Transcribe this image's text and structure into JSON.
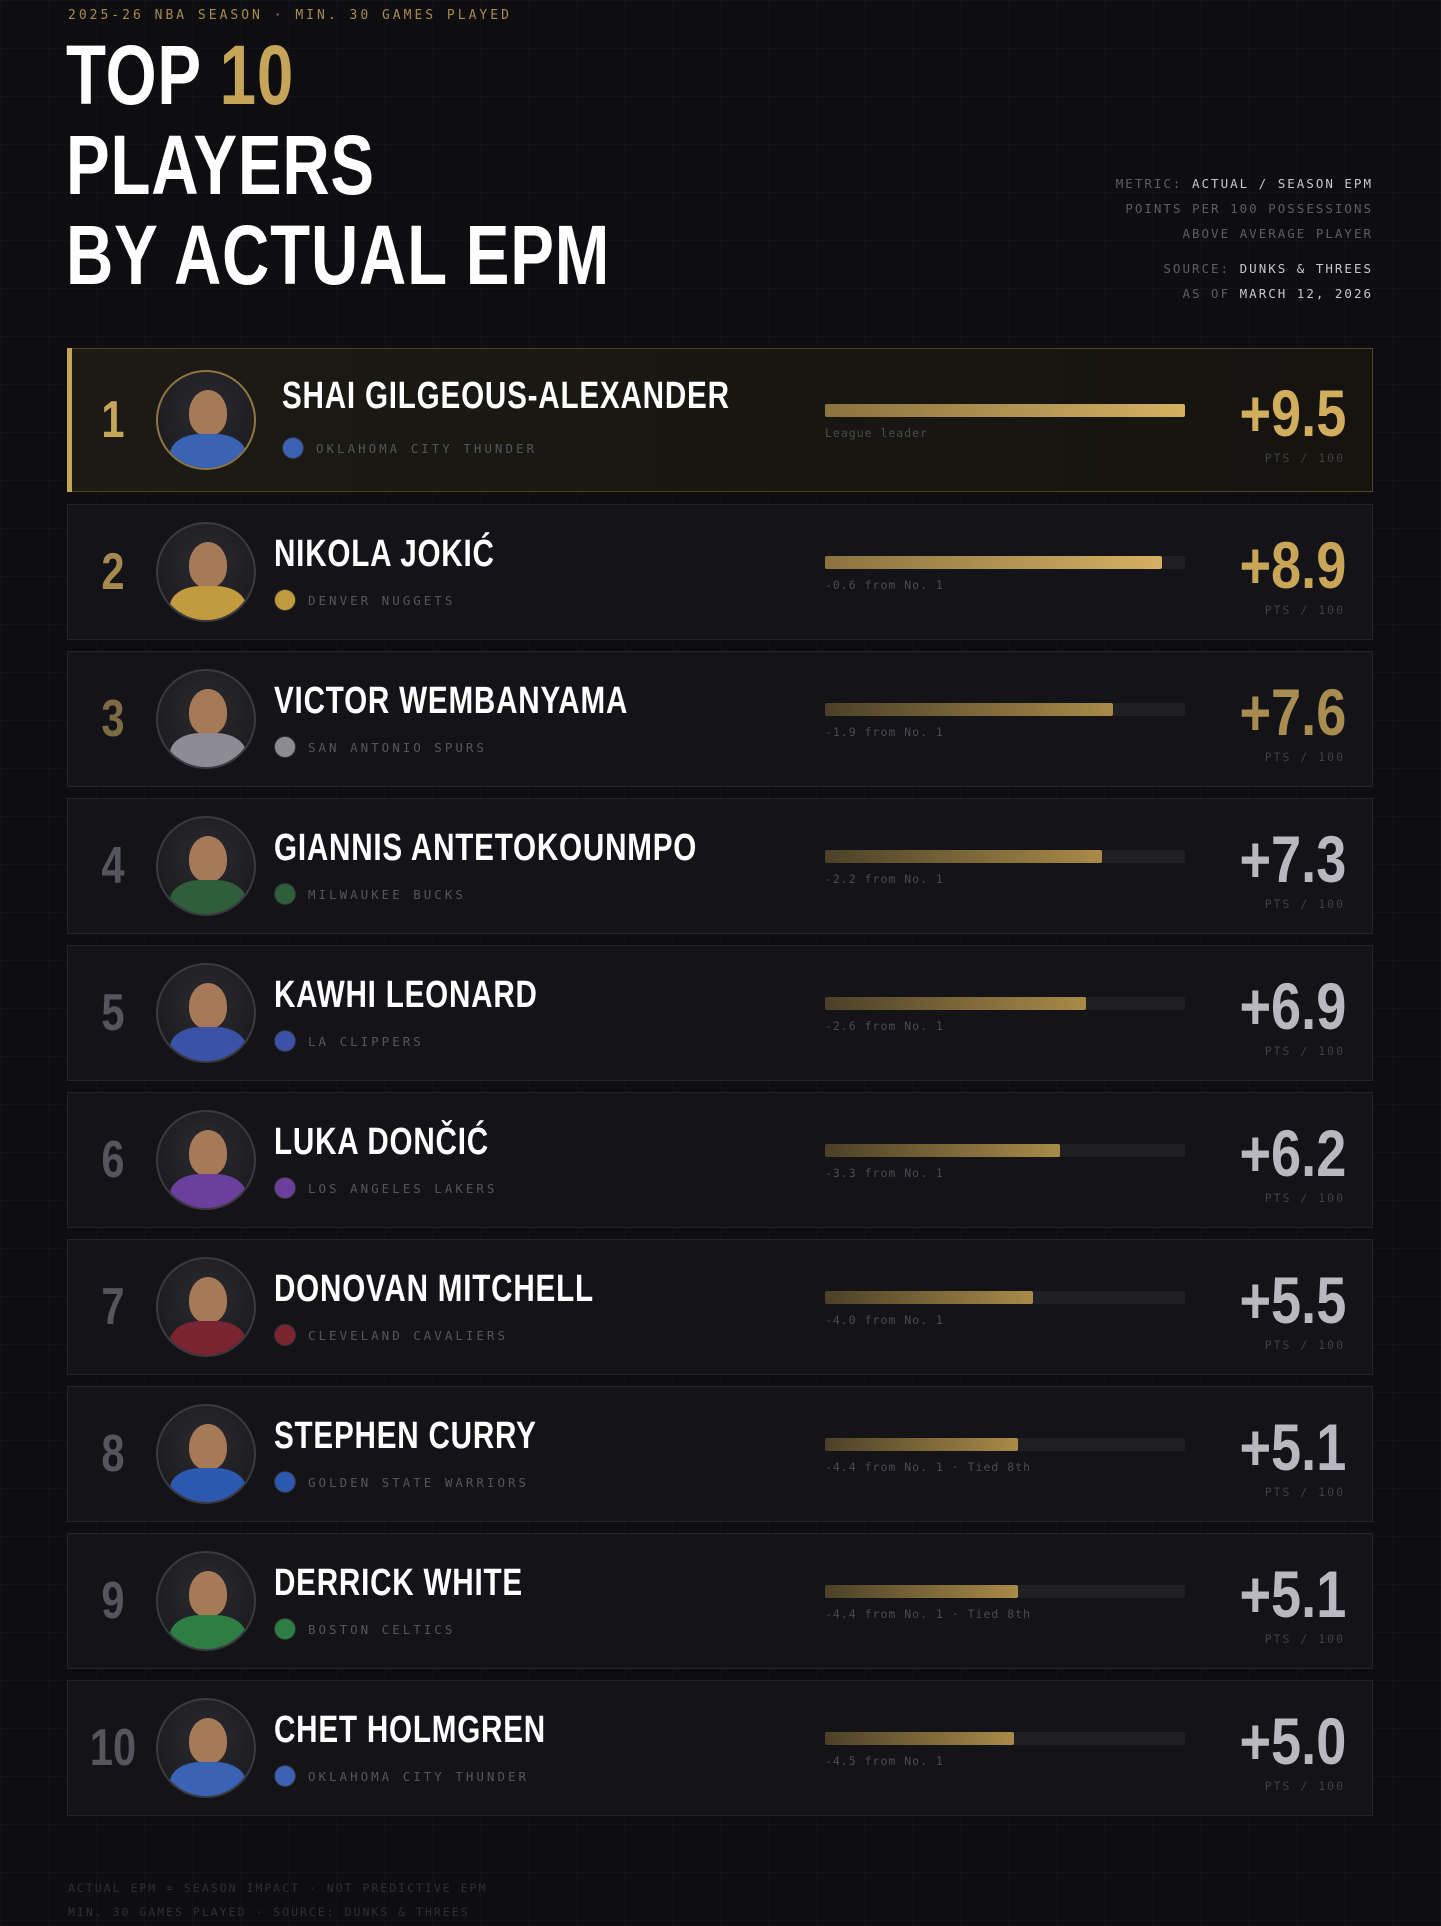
{
  "header": {
    "kicker": "2025-26 NBA SEASON · MIN. 30 GAMES PLAYED",
    "title_line1_a": "TOP ",
    "title_line1_b": "10",
    "title_line2": "PLAYERS",
    "title_line3": "BY ACTUAL EPM",
    "meta": {
      "metric_label": "METRIC:",
      "metric_value": "ACTUAL / SEASON EPM",
      "desc_line1": "POINTS PER 100 POSSESSIONS",
      "desc_line2": "ABOVE AVERAGE PLAYER",
      "source_label": "SOURCE:",
      "source_value": "DUNKS & THREES",
      "asof_label": "AS OF",
      "asof_value": "MARCH 12, 2026"
    }
  },
  "players": [
    {
      "rank": "1",
      "name": "SHAI GILGEOUS-ALEXANDER",
      "team": "OKLAHOMA CITY THUNDER",
      "value": "+9.5",
      "epm": 9.5,
      "note": "League leader",
      "unit": "PTS / 100",
      "team_color": "#3a63b5",
      "rank_color": "#c6a45a",
      "value_color": "#d1ad5e"
    },
    {
      "rank": "2",
      "name": "NIKOLA JOKIĆ",
      "team": "DENVER NUGGETS",
      "value": "+8.9",
      "epm": 8.9,
      "note": "-0.6 from No. 1",
      "unit": "PTS / 100",
      "team_color": "#c29b3f",
      "rank_color": "#a6894f",
      "value_color": "#c9a557"
    },
    {
      "rank": "3",
      "name": "VICTOR WEMBANYAMA",
      "team": "SAN ANTONIO SPURS",
      "value": "+7.6",
      "epm": 7.6,
      "note": "-1.9 from No. 1",
      "unit": "PTS / 100",
      "team_color": "#8c8c92",
      "rank_color": "#7d6b45",
      "value_color": "#a88c50"
    },
    {
      "rank": "4",
      "name": "GIANNIS ANTETOKOUNMPO",
      "team": "MILWAUKEE BUCKS",
      "value": "+7.3",
      "epm": 7.3,
      "note": "-2.2 from No. 1",
      "unit": "PTS / 100",
      "team_color": "#2f5e3a",
      "rank_color": "#55555c",
      "value_color": "#b8b8be"
    },
    {
      "rank": "5",
      "name": "KAWHI LEONARD",
      "team": "LA CLIPPERS",
      "value": "+6.9",
      "epm": 6.9,
      "note": "-2.6 from No. 1",
      "unit": "PTS / 100",
      "team_color": "#3a52a8",
      "rank_color": "#55555c",
      "value_color": "#b8b8be"
    },
    {
      "rank": "6",
      "name": "LUKA DONČIĆ",
      "team": "LOS ANGELES LAKERS",
      "value": "+6.2",
      "epm": 6.2,
      "note": "-3.3 from No. 1",
      "unit": "PTS / 100",
      "team_color": "#6b3f9c",
      "rank_color": "#55555c",
      "value_color": "#b8b8be"
    },
    {
      "rank": "7",
      "name": "DONOVAN MITCHELL",
      "team": "CLEVELAND CAVALIERS",
      "value": "+5.5",
      "epm": 5.5,
      "note": "-4.0 from No. 1",
      "unit": "PTS / 100",
      "team_color": "#7a2431",
      "rank_color": "#55555c",
      "value_color": "#b8b8be"
    },
    {
      "rank": "8",
      "name": "STEPHEN CURRY",
      "team": "GOLDEN STATE WARRIORS",
      "value": "+5.1",
      "epm": 5.1,
      "note": "-4.4 from No. 1 · Tied 8th",
      "unit": "PTS / 100",
      "team_color": "#2d58b0",
      "rank_color": "#55555c",
      "value_color": "#b8b8be"
    },
    {
      "rank": "9",
      "name": "DERRICK WHITE",
      "team": "BOSTON CELTICS",
      "value": "+5.1",
      "epm": 5.1,
      "note": "-4.4 from No. 1 · Tied 8th",
      "unit": "PTS / 100",
      "team_color": "#2e7d45",
      "rank_color": "#55555c",
      "value_color": "#b8b8be"
    },
    {
      "rank": "10",
      "name": "CHET HOLMGREN",
      "team": "OKLAHOMA CITY THUNDER",
      "value": "+5.0",
      "epm": 5.0,
      "note": "-4.5 from No. 1",
      "unit": "PTS / 100",
      "team_color": "#3a63b5",
      "rank_color": "#55555c",
      "value_color": "#b8b8be"
    }
  ],
  "bar_max": 9.5,
  "footer": {
    "line1": "ACTUAL EPM = SEASON IMPACT · NOT PREDICTIVE EPM",
    "line2": "MIN. 30 GAMES PLAYED · SOURCE: DUNKS & THREES"
  },
  "colors": {
    "accent_gold": "#c6a45a",
    "background": "#0e0e11"
  }
}
